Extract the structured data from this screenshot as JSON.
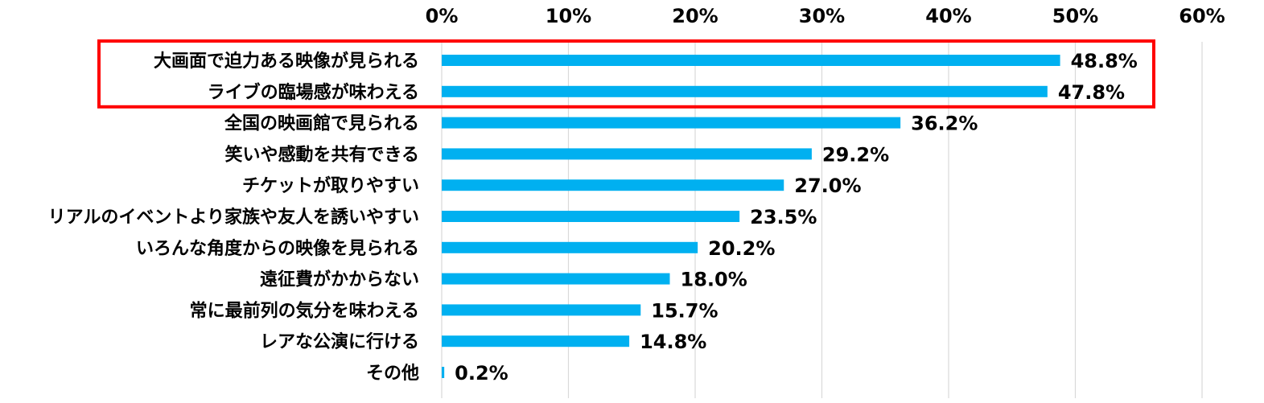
{
  "chart_data": {
    "type": "bar",
    "orientation": "horizontal",
    "categories": [
      "大画面で迫力ある映像が見られる",
      "ライブの臨場感が味わえる",
      "全国の映画館で見られる",
      "笑いや感動を共有できる",
      "チケットが取りやすい",
      "リアルのイベントより家族や友人を誘いやすい",
      "いろんな角度からの映像を見られる",
      "遠征費がかからない",
      "常に最前列の気分を味わえる",
      "レアな公演に行ける",
      "その他"
    ],
    "values": [
      48.8,
      47.8,
      36.2,
      29.2,
      27.0,
      23.5,
      20.2,
      18.0,
      15.7,
      14.8,
      0.2
    ],
    "value_labels": [
      "48.8%",
      "47.8%",
      "36.2%",
      "29.2%",
      "27.0%",
      "23.5%",
      "20.2%",
      "18.0%",
      "15.7%",
      "14.8%",
      "0.2%"
    ],
    "x_ticks": [
      "0%",
      "10%",
      "20%",
      "30%",
      "40%",
      "50%",
      "60%"
    ],
    "xlim": [
      0,
      60
    ],
    "x_axis_position": "top",
    "grid": true,
    "highlight": {
      "categories_index": [
        0,
        1
      ],
      "color": "#ff0000"
    },
    "bar_color": "#00b0f0",
    "grid_color": "#d9d9d9"
  }
}
